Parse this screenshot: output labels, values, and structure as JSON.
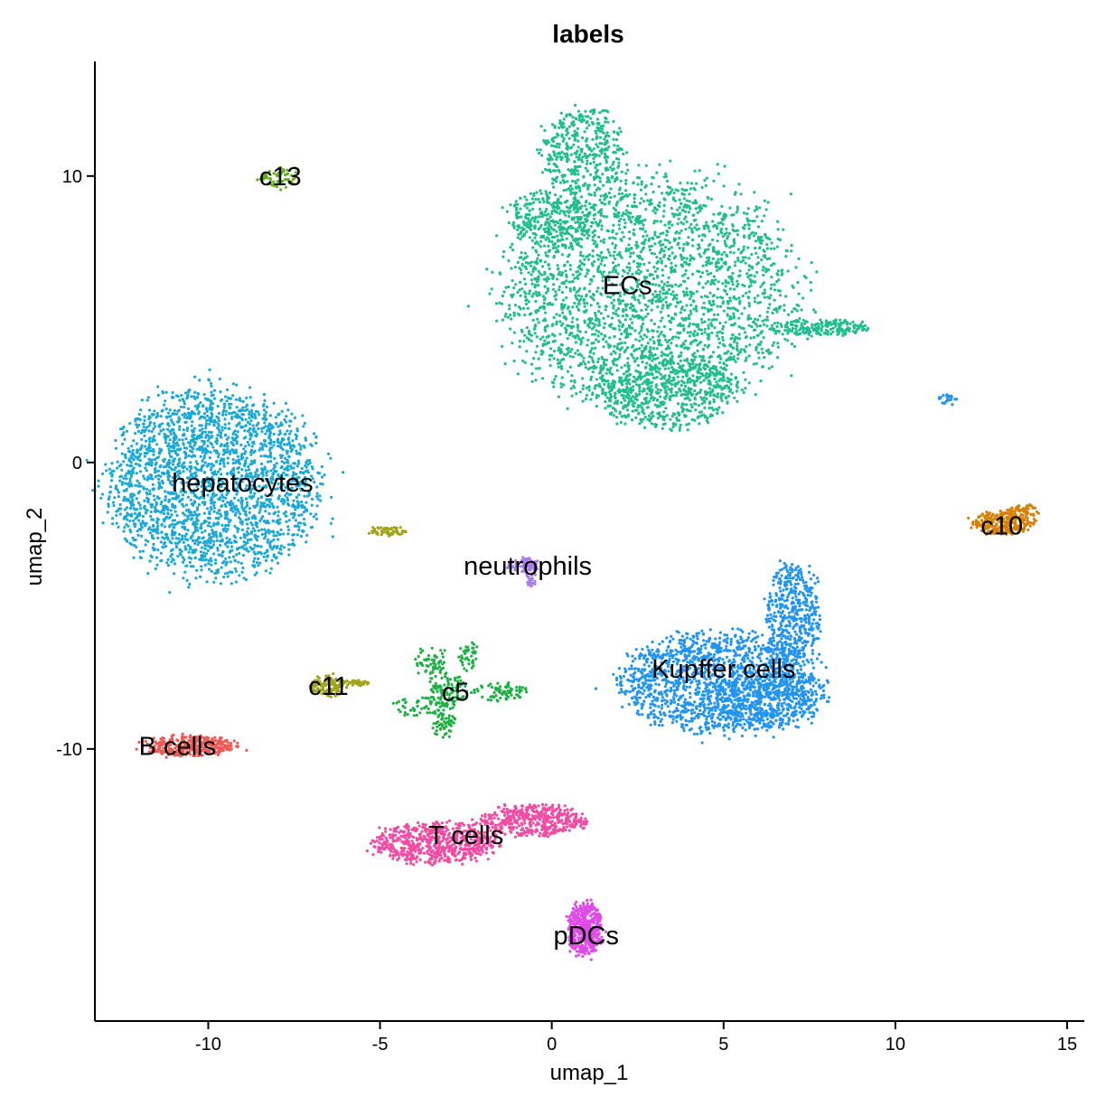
{
  "chart_data": {
    "type": "scatter",
    "title": "labels",
    "xlabel": "umap_1",
    "ylabel": "umap_2",
    "xlim": [
      -13.3,
      15.5
    ],
    "ylim": [
      -19.5,
      14
    ],
    "xticks": [
      -10,
      -5,
      0,
      5,
      10,
      15
    ],
    "yticks": [
      -10,
      0,
      10
    ],
    "grid": false,
    "legend": "none",
    "clusters": [
      {
        "name": "ECs",
        "color": "#1FBE8E",
        "label_pos": [
          2.2,
          6.2
        ],
        "blobs": [
          {
            "cx": 2.9,
            "cy": 5.9,
            "rx": 4.2,
            "ry": 4.0,
            "n": 2600
          },
          {
            "cx": 3.3,
            "cy": 2.5,
            "rx": 2.0,
            "ry": 1.3,
            "n": 500
          },
          {
            "cx": 0.9,
            "cy": 10.9,
            "rx": 1.2,
            "ry": 1.5,
            "n": 400
          },
          {
            "cx": 7.8,
            "cy": 4.7,
            "rx": 1.4,
            "ry": 0.3,
            "n": 180
          },
          {
            "cx": 0.0,
            "cy": 8.5,
            "rx": 1.3,
            "ry": 1.0,
            "n": 300
          }
        ]
      },
      {
        "name": "hepatocytes",
        "color": "#1AA9D6",
        "label_pos": [
          -9.0,
          -0.7
        ],
        "blobs": [
          {
            "cx": -9.8,
            "cy": -0.7,
            "rx": 3.0,
            "ry": 3.2,
            "n": 2400
          }
        ]
      },
      {
        "name": "Kupffer cells",
        "color": "#2194F2",
        "label_pos": [
          5.0,
          -7.2
        ],
        "blobs": [
          {
            "cx": 4.9,
            "cy": -7.7,
            "rx": 2.9,
            "ry": 1.7,
            "n": 1500
          },
          {
            "cx": 7.0,
            "cy": -5.3,
            "rx": 0.8,
            "ry": 1.7,
            "n": 450
          },
          {
            "cx": 6.2,
            "cy": -8.3,
            "rx": 1.7,
            "ry": 1.0,
            "n": 400
          },
          {
            "cx": 11.5,
            "cy": 2.2,
            "rx": 0.3,
            "ry": 0.2,
            "n": 25
          }
        ]
      },
      {
        "name": "T cells",
        "color": "#F24BA3",
        "label_pos": [
          -2.5,
          -13.0
        ],
        "blobs": [
          {
            "cx": -3.4,
            "cy": -13.3,
            "rx": 1.8,
            "ry": 0.7,
            "n": 650
          },
          {
            "cx": -0.6,
            "cy": -12.5,
            "rx": 1.5,
            "ry": 0.55,
            "n": 450
          }
        ]
      },
      {
        "name": "pDCs",
        "color": "#DF4BE8",
        "label_pos": [
          1.0,
          -16.5
        ],
        "blobs": [
          {
            "cx": 0.95,
            "cy": -16.3,
            "rx": 0.5,
            "ry": 0.9,
            "n": 450
          }
        ]
      },
      {
        "name": "c5",
        "color": "#1DB145",
        "label_pos": [
          -2.8,
          -8.0
        ],
        "blobs": [
          {
            "cx": -3.0,
            "cy": -8.0,
            "rx": 0.5,
            "ry": 0.6,
            "n": 90
          },
          {
            "cx": -3.5,
            "cy": -7.0,
            "rx": 0.5,
            "ry": 0.5,
            "n": 60
          },
          {
            "cx": -1.5,
            "cy": -8.0,
            "rx": 0.8,
            "ry": 0.3,
            "n": 80
          },
          {
            "cx": -3.8,
            "cy": -8.5,
            "rx": 0.8,
            "ry": 0.35,
            "n": 60
          },
          {
            "cx": -3.1,
            "cy": -9.2,
            "rx": 0.35,
            "ry": 0.4,
            "n": 50
          },
          {
            "cx": -2.4,
            "cy": -6.8,
            "rx": 0.3,
            "ry": 0.5,
            "n": 40
          }
        ]
      },
      {
        "name": "neutrophils",
        "color": "#A77BF0",
        "label_pos": [
          -0.7,
          -3.6
        ],
        "blobs": [
          {
            "cx": -0.8,
            "cy": -3.6,
            "rx": 0.5,
            "ry": 0.22,
            "n": 80
          },
          {
            "cx": -0.6,
            "cy": -4.0,
            "rx": 0.15,
            "ry": 0.3,
            "n": 20
          }
        ]
      },
      {
        "name": "B cells",
        "color": "#EC5A56",
        "label_pos": [
          -10.9,
          -9.9
        ],
        "blobs": [
          {
            "cx": -10.5,
            "cy": -9.9,
            "rx": 1.3,
            "ry": 0.35,
            "n": 350
          }
        ]
      },
      {
        "name": "c10",
        "color": "#D5820A",
        "label_pos": [
          13.1,
          -2.2
        ],
        "blobs": [
          {
            "cx": 13.1,
            "cy": -2.1,
            "rx": 0.9,
            "ry": 0.4,
            "n": 250
          },
          {
            "cx": 13.7,
            "cy": -1.7,
            "rx": 0.5,
            "ry": 0.2,
            "n": 60
          }
        ]
      },
      {
        "name": "c11",
        "color": "#A1A31B",
        "label_pos": [
          -6.5,
          -7.8
        ],
        "blobs": [
          {
            "cx": -6.5,
            "cy": -7.8,
            "rx": 0.5,
            "ry": 0.35,
            "n": 130
          },
          {
            "cx": -5.7,
            "cy": -7.7,
            "rx": 0.4,
            "ry": 0.1,
            "n": 35
          },
          {
            "cx": -4.8,
            "cy": -2.4,
            "rx": 0.6,
            "ry": 0.15,
            "n": 60
          }
        ]
      },
      {
        "name": "c13",
        "color": "#62AE19",
        "label_pos": [
          -7.9,
          10.0
        ],
        "blobs": [
          {
            "cx": -7.9,
            "cy": 9.95,
            "rx": 0.55,
            "ry": 0.4,
            "n": 60
          }
        ]
      }
    ]
  }
}
